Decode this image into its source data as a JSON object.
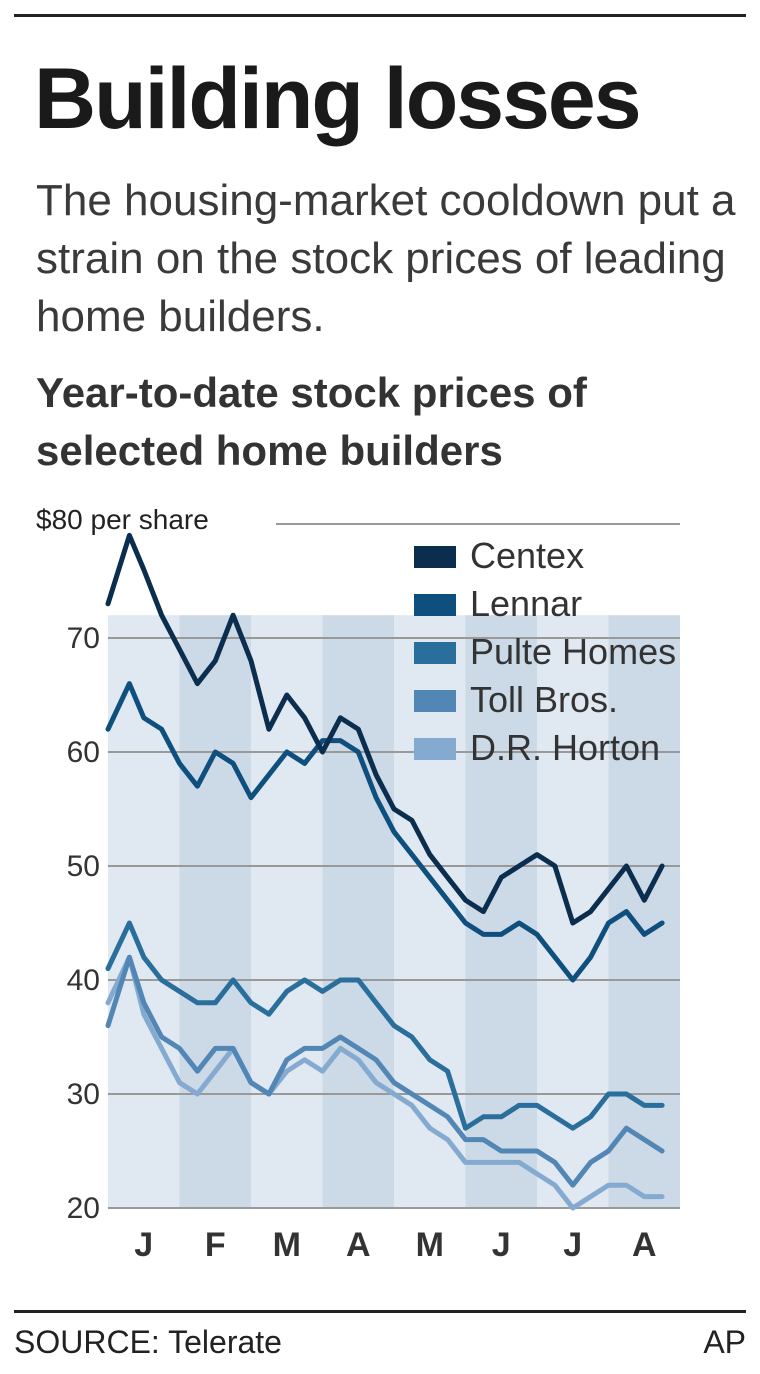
{
  "header": {
    "title": "Building losses",
    "subtitle": "The housing-market cooldown put a strain on the stock prices of leading home builders."
  },
  "footer": {
    "source": "SOURCE: Telerate",
    "credit": "AP"
  },
  "colors": {
    "Centex": "#0b2e4f",
    "Lennar": "#0f4f7e",
    "Pulte Homes": "#2a6e9c",
    "Toll Bros.": "#5286b5",
    "D.R. Horton": "#84aad0",
    "band": "#c7d6e6",
    "grid": "#999999"
  },
  "chart_data": {
    "type": "line",
    "title": "Year-to-date stock prices of selected home builders",
    "ylabel": "$80 per share",
    "ylim": [
      20,
      80
    ],
    "yticks": [
      20,
      30,
      40,
      50,
      60,
      70
    ],
    "grid": true,
    "legend_position": "top-right",
    "x_tick_labels": [
      "J",
      "F",
      "M",
      "A",
      "M",
      "J",
      "J",
      "A"
    ],
    "x": [
      0,
      0.15,
      0.3,
      0.5,
      0.75,
      1,
      1.25,
      1.5,
      1.75,
      2,
      2.25,
      2.5,
      2.75,
      3,
      3.25,
      3.5,
      3.75,
      4,
      4.25,
      4.5,
      4.75,
      5,
      5.25,
      5.5,
      5.75,
      6,
      6.25,
      6.5,
      6.75,
      7,
      7.25,
      7.5,
      7.75
    ],
    "series": [
      {
        "name": "Centex",
        "values": [
          73,
          76,
          79,
          76,
          72,
          69,
          66,
          68,
          72,
          68,
          62,
          65,
          63,
          60,
          63,
          62,
          58,
          55,
          54,
          51,
          49,
          47,
          46,
          49,
          50,
          51,
          50,
          45,
          46,
          48,
          50,
          47,
          50
        ]
      },
      {
        "name": "Lennar",
        "values": [
          62,
          64,
          66,
          63,
          62,
          59,
          57,
          60,
          59,
          56,
          58,
          60,
          59,
          61,
          61,
          60,
          56,
          53,
          51,
          49,
          47,
          45,
          44,
          44,
          45,
          44,
          42,
          40,
          42,
          45,
          46,
          44,
          45
        ]
      },
      {
        "name": "Pulte Homes",
        "values": [
          41,
          43,
          45,
          42,
          40,
          39,
          38,
          38,
          40,
          38,
          37,
          39,
          40,
          39,
          40,
          40,
          38,
          36,
          35,
          33,
          32,
          27,
          28,
          28,
          29,
          29,
          28,
          27,
          28,
          30,
          30,
          29,
          29
        ]
      },
      {
        "name": "Toll Bros.",
        "values": [
          36,
          39,
          42,
          38,
          35,
          34,
          32,
          34,
          34,
          31,
          30,
          33,
          34,
          34,
          35,
          34,
          33,
          31,
          30,
          29,
          28,
          26,
          26,
          25,
          25,
          25,
          24,
          22,
          24,
          25,
          27,
          26,
          25
        ]
      },
      {
        "name": "D.R. Horton",
        "values": [
          38,
          40,
          42,
          37,
          34,
          31,
          30,
          32,
          34,
          31,
          30,
          32,
          33,
          32,
          34,
          33,
          31,
          30,
          29,
          27,
          26,
          24,
          24,
          24,
          24,
          23,
          22,
          20,
          21,
          22,
          22,
          21,
          21
        ]
      }
    ]
  }
}
